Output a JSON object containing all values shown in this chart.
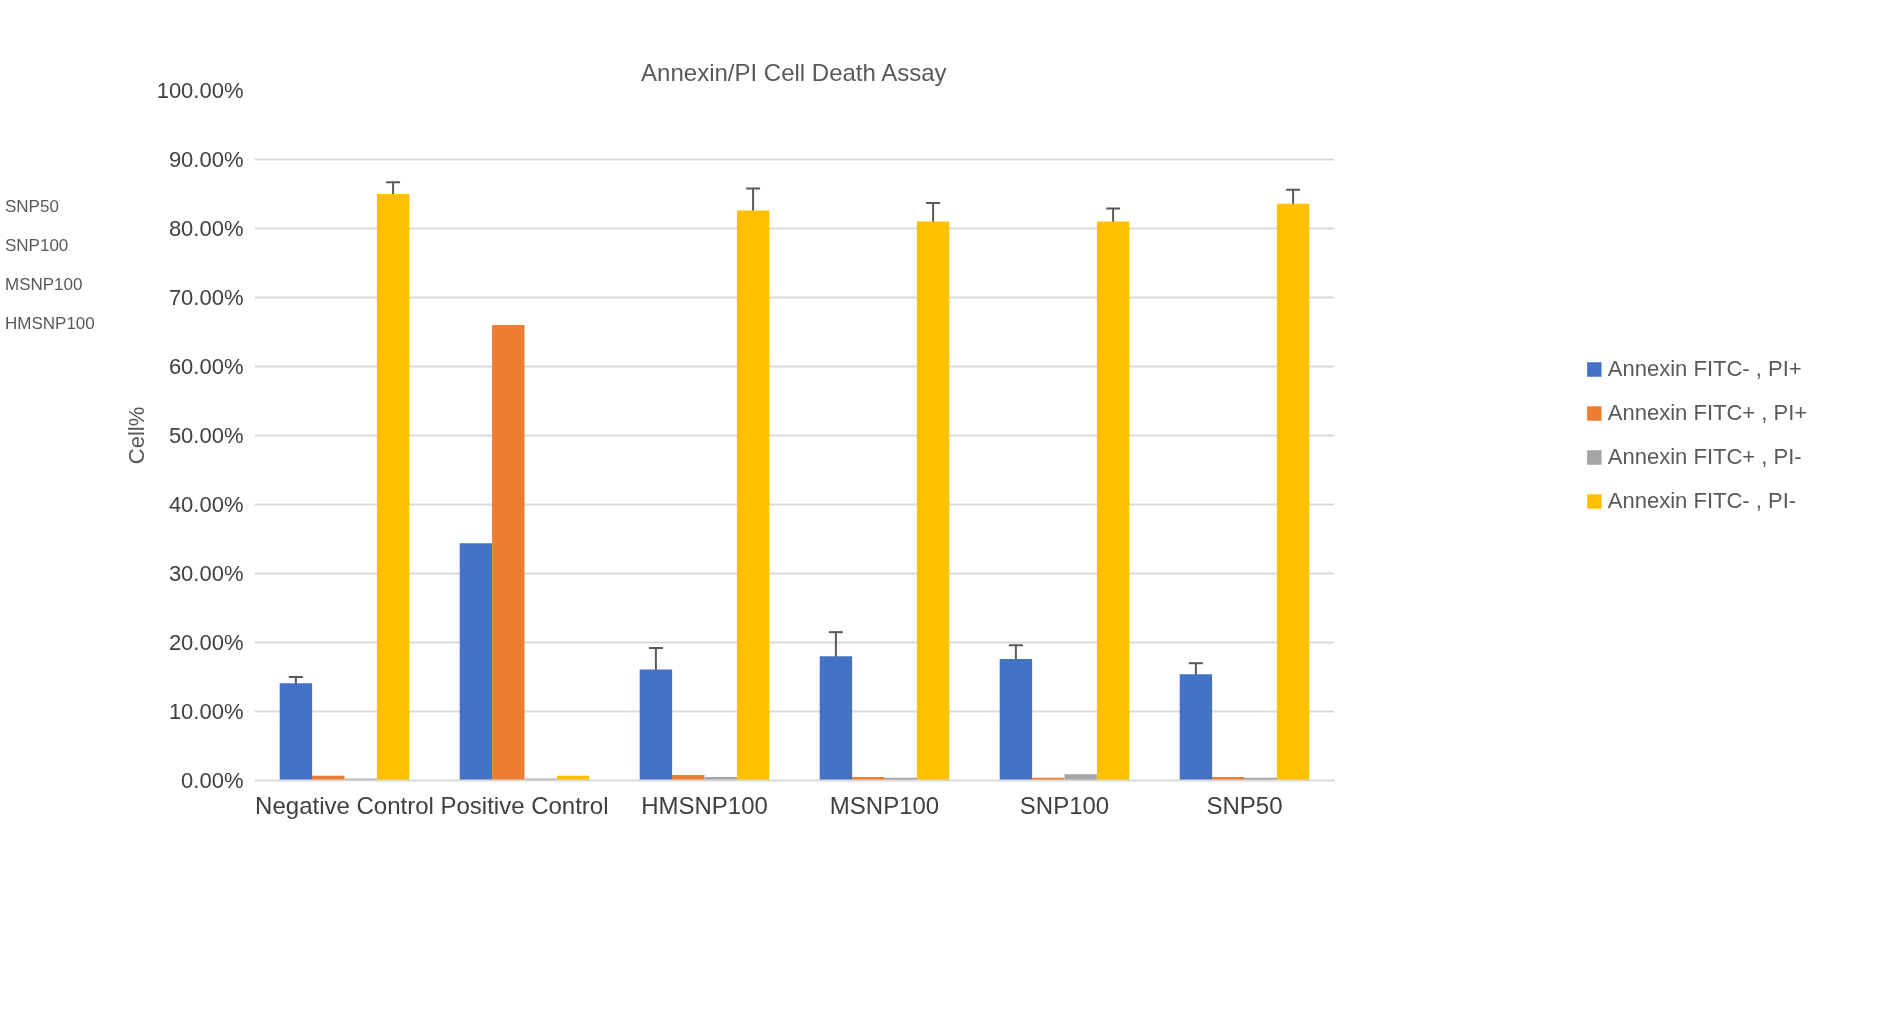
{
  "chart_data": {
    "type": "bar",
    "title": "Annexin/PI Cell Death Assay",
    "ylabel": "Cell%",
    "categories": [
      "Negative Control",
      "Positive Control",
      "HMSNP100",
      "MSNP100",
      "SNP100",
      "SNP50"
    ],
    "series": [
      {
        "name": "Annexin FITC- , PI+",
        "color": "#4472c4",
        "values": [
          14.1,
          34.4,
          16.1,
          18.0,
          17.6,
          15.4
        ],
        "errors": [
          0.9,
          null,
          3.1,
          3.5,
          2.0,
          1.6
        ]
      },
      {
        "name": "Annexin FITC+ , PI+",
        "color": "#ed7d31",
        "values": [
          0.7,
          66.0,
          0.8,
          0.5,
          0.4,
          0.5
        ],
        "errors": [
          null,
          null,
          null,
          null,
          null,
          null
        ]
      },
      {
        "name": "Annexin FITC+ , PI-",
        "color": "#a5a5a5",
        "values": [
          0.3,
          0.3,
          0.5,
          0.4,
          0.9,
          0.4
        ],
        "errors": [
          null,
          null,
          null,
          null,
          null,
          null
        ]
      },
      {
        "name": "Annexin FITC- , PI-",
        "color": "#ffc000",
        "values": [
          85.0,
          0.7,
          82.6,
          81.0,
          81.0,
          83.6
        ],
        "errors": [
          1.7,
          null,
          3.2,
          2.7,
          1.9,
          2.0
        ]
      }
    ],
    "ylim": [
      0,
      100
    ],
    "yticks": [
      {
        "value": 0,
        "label": "0.00%"
      },
      {
        "value": 10,
        "label": "10.00%"
      },
      {
        "value": 20,
        "label": "20.00%"
      },
      {
        "value": 30,
        "label": "30.00%"
      },
      {
        "value": 40,
        "label": "40.00%"
      },
      {
        "value": 50,
        "label": "50.00%"
      },
      {
        "value": 60,
        "label": "60.00%"
      },
      {
        "value": 70,
        "label": "70.00%"
      },
      {
        "value": 80,
        "label": "80.00%"
      },
      {
        "value": 90,
        "label": "90.00%"
      },
      {
        "value": 100,
        "label": "100.00%"
      }
    ],
    "grid": "y",
    "legend": "right",
    "annotations": [
      "SNP50",
      "SNP100",
      "MSNP100",
      "HMSNP100"
    ]
  }
}
